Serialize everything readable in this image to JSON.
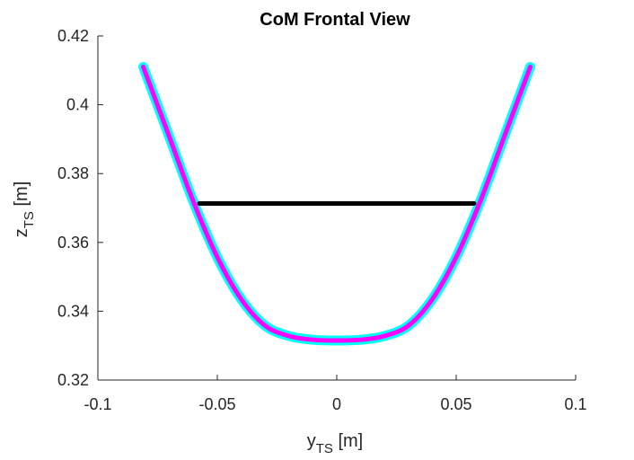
{
  "chart_data": {
    "type": "line",
    "title": "CoM Frontal View",
    "xlabel": {
      "base": "y",
      "sub": "TS",
      "unit": " [m]"
    },
    "ylabel": {
      "base": "z",
      "sub": "TS",
      "unit": " [m]"
    },
    "xlim": [
      -0.1,
      0.1
    ],
    "ylim": [
      0.32,
      0.42
    ],
    "xticks": [
      -0.1,
      -0.05,
      0,
      0.05,
      0.1
    ],
    "xtick_labels": [
      "-0.1",
      "-0.05",
      "0",
      "0.05",
      "0.1"
    ],
    "yticks": [
      0.32,
      0.34,
      0.36,
      0.38,
      0.4,
      0.42
    ],
    "ytick_labels": [
      "0.32",
      "0.34",
      "0.36",
      "0.38",
      "0.4",
      "0.42"
    ],
    "grid": false,
    "series": [
      {
        "color": "#00ffff",
        "style": "thick-line",
        "x": [
          -0.081,
          -0.07,
          -0.06,
          -0.05,
          -0.04,
          -0.03,
          -0.02,
          -0.01,
          0,
          0.01,
          0.02,
          0.03,
          0.04,
          0.05,
          0.06,
          0.07,
          0.081
        ],
        "y": [
          0.411,
          0.3905,
          0.3718,
          0.3557,
          0.3435,
          0.3358,
          0.3328,
          0.3317,
          0.3315,
          0.3317,
          0.3328,
          0.3358,
          0.3435,
          0.3557,
          0.3718,
          0.3905,
          0.411
        ]
      },
      {
        "color": "#ff00ff",
        "style": "line",
        "x": [
          -0.081,
          -0.07,
          -0.06,
          -0.05,
          -0.04,
          -0.03,
          -0.02,
          -0.01,
          0,
          0.01,
          0.02,
          0.03,
          0.04,
          0.05,
          0.06,
          0.07,
          0.081
        ],
        "y": [
          0.411,
          0.3905,
          0.3718,
          0.3557,
          0.3435,
          0.3358,
          0.3328,
          0.3317,
          0.3315,
          0.3317,
          0.3328,
          0.3358,
          0.3435,
          0.3557,
          0.3718,
          0.3905,
          0.411
        ]
      },
      {
        "color": "#000000",
        "style": "line",
        "x": [
          -0.0575,
          0.0575
        ],
        "y": [
          0.3713,
          0.3713
        ]
      }
    ]
  }
}
